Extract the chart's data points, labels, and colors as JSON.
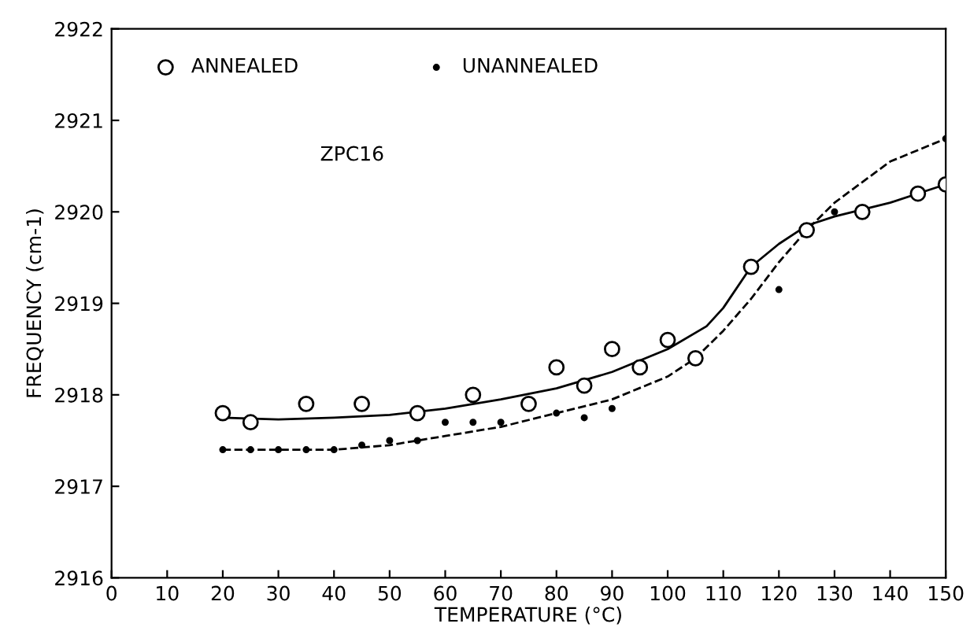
{
  "chart_data": {
    "type": "scatter",
    "xlabel": "TEMPERATURE (°C)",
    "ylabel": "FREQUENCY (cm-1)",
    "annotations": [
      "ZPC16"
    ],
    "legend": "top left",
    "grid": false,
    "xlim": [
      0,
      150
    ],
    "xticks": [
      0,
      10,
      20,
      30,
      40,
      50,
      60,
      70,
      80,
      90,
      100,
      110,
      120,
      130,
      140,
      150
    ],
    "ylim": [
      2916,
      2922
    ],
    "yticks": [
      2916,
      2917,
      2918,
      2919,
      2920,
      2921,
      2922
    ],
    "series": [
      {
        "name": "ANNEALED",
        "marker": "circle",
        "color": "#000000",
        "x": [
          20,
          25,
          35,
          45,
          55,
          65,
          75,
          80,
          85,
          90,
          95,
          100,
          105,
          115,
          125,
          135,
          145,
          150
        ],
        "values": [
          2917.8,
          2917.7,
          2917.9,
          2917.9,
          2917.8,
          2918.0,
          2917.9,
          2918.3,
          2918.1,
          2918.5,
          2918.3,
          2918.6,
          2918.4,
          2919.4,
          2919.8,
          2920.0,
          2920.2,
          2920.3
        ]
      },
      {
        "name": "UNANNEALED",
        "marker": "circle",
        "color": "#000000",
        "x": [
          20,
          25,
          30,
          35,
          40,
          45,
          50,
          55,
          60,
          65,
          70,
          80,
          85,
          90,
          120,
          130,
          150
        ],
        "values": [
          2917.4,
          2917.4,
          2917.4,
          2917.4,
          2917.4,
          2917.45,
          2917.5,
          2917.5,
          2917.7,
          2917.7,
          2917.7,
          2917.8,
          2917.75,
          2917.85,
          2919.15,
          2920.0,
          2920.8
        ]
      },
      {
        "type": "line",
        "line_style": "solid",
        "color": "#000000",
        "x": [
          20,
          30,
          40,
          50,
          60,
          70,
          80,
          90,
          100,
          107,
          110,
          115,
          120,
          125,
          130,
          140,
          150
        ],
        "values": [
          2917.75,
          2917.73,
          2917.75,
          2917.78,
          2917.85,
          2917.95,
          2918.07,
          2918.25,
          2918.5,
          2918.75,
          2918.95,
          2919.4,
          2919.65,
          2919.85,
          2919.95,
          2920.1,
          2920.3
        ]
      },
      {
        "type": "line",
        "line_style": "dashed",
        "color": "#000000",
        "x": [
          20,
          40,
          50,
          60,
          70,
          80,
          90,
          100,
          105,
          110,
          115,
          120,
          125,
          130,
          140,
          150
        ],
        "values": [
          2917.4,
          2917.4,
          2917.45,
          2917.55,
          2917.65,
          2917.8,
          2917.95,
          2918.2,
          2918.4,
          2918.7,
          2919.05,
          2919.45,
          2919.8,
          2920.1,
          2920.55,
          2920.8
        ]
      }
    ]
  }
}
